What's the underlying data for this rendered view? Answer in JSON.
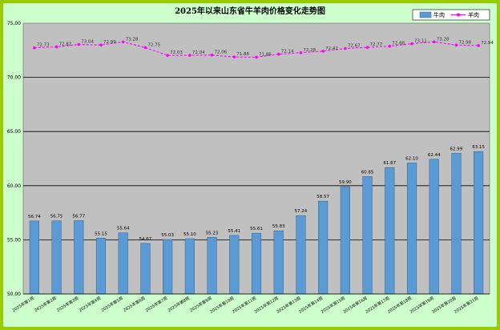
{
  "chart_data": {
    "type": "bar",
    "title": "2025年以来山东省牛羊肉价格变化走势图",
    "categories": [
      "2025年第1周",
      "2025年第2周",
      "2025年第3周",
      "2025年第4周",
      "2025年第5周",
      "2025年第6周",
      "2025年第7周",
      "2025年第8周",
      "2025年第9周",
      "2025年第10周",
      "2025年第11周",
      "2025年第12周",
      "2025年第13周",
      "2025年第14周",
      "2025年第15周",
      "2025年第16周",
      "2025年第17周",
      "2025年第18周",
      "2025年第19周",
      "2025年第20周",
      "2025年第21周"
    ],
    "ylim": [
      50.0,
      75.0
    ],
    "yticks": [
      "50.00",
      "55.00",
      "60.00",
      "65.00",
      "70.00",
      "75.00"
    ],
    "grid": true,
    "legend_position": "top-right",
    "series": [
      {
        "name": "牛肉",
        "type": "bar",
        "color": "#5b9bd5",
        "values": [
          56.74,
          56.75,
          56.77,
          55.15,
          55.64,
          54.67,
          55.03,
          55.1,
          55.23,
          55.41,
          55.61,
          55.83,
          57.24,
          58.57,
          59.9,
          60.85,
          61.67,
          62.1,
          62.44,
          62.99,
          63.15
        ],
        "labels": [
          "56.74",
          "56.75",
          "56.77",
          "55.15",
          "55.64",
          "54.67",
          "55.03",
          "55.10",
          "55.23",
          "55.41",
          "55.61",
          "55.83",
          "57.24",
          "58.57",
          "59.90",
          "60.85",
          "61.67",
          "62.10",
          "62.44",
          "62.99",
          "63.15"
        ]
      },
      {
        "name": "羊肉",
        "type": "line",
        "color": "#ff00ff",
        "values": [
          72.73,
          72.82,
          73.04,
          72.99,
          73.28,
          72.75,
          72.03,
          72.04,
          72.06,
          71.88,
          71.86,
          72.14,
          72.28,
          72.42,
          72.67,
          72.77,
          72.88,
          73.11,
          73.28,
          72.98,
          72.94
        ],
        "labels": [
          "72.73",
          "72.82",
          "73.04",
          "72.99",
          "73.28",
          "72.75",
          "72.03",
          "72.04",
          "72.06",
          "71.88",
          "71.86",
          "72.14",
          "72.28",
          "72.42",
          "72.67",
          "72.77",
          "72.88",
          "73.11",
          "73.28",
          "72.98",
          "72.94"
        ]
      }
    ]
  }
}
